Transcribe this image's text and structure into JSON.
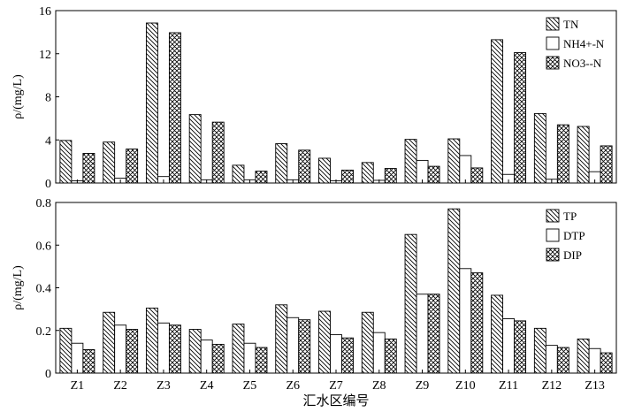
{
  "chart_data": [
    {
      "type": "bar",
      "categories": [
        "Z1",
        "Z2",
        "Z3",
        "Z4",
        "Z5",
        "Z6",
        "Z7",
        "Z8",
        "Z9",
        "Z10",
        "Z11",
        "Z12",
        "Z13"
      ],
      "ylabel": "ρ/(mg/L)",
      "ylim": [
        0,
        16
      ],
      "yticks": [
        0,
        4,
        8,
        12,
        16
      ],
      "legend_position": "top-right",
      "grid": false,
      "series": [
        {
          "name": "TN",
          "pattern": "diagonal-hatch",
          "values": [
            3.95,
            3.8,
            14.85,
            6.35,
            1.65,
            3.65,
            2.3,
            1.9,
            4.05,
            4.1,
            13.3,
            6.45,
            5.25
          ]
        },
        {
          "name": "NH4+-N",
          "pattern": "none",
          "values": [
            0.2,
            0.45,
            0.6,
            0.3,
            0.3,
            0.3,
            0.2,
            0.25,
            2.1,
            2.55,
            0.8,
            0.35,
            1.05
          ]
        },
        {
          "name": "NO3--N",
          "pattern": "cross-hatch",
          "values": [
            2.75,
            3.15,
            13.95,
            5.65,
            1.1,
            3.05,
            1.2,
            1.35,
            1.55,
            1.4,
            12.1,
            5.4,
            3.45
          ]
        }
      ]
    },
    {
      "type": "bar",
      "categories": [
        "Z1",
        "Z2",
        "Z3",
        "Z4",
        "Z5",
        "Z6",
        "Z7",
        "Z8",
        "Z9",
        "Z10",
        "Z11",
        "Z12",
        "Z13"
      ],
      "xlabel": "汇水区编号",
      "ylabel": "ρ/(mg/L)",
      "ylim": [
        0,
        0.8
      ],
      "yticks": [
        0,
        0.2,
        0.4,
        0.6,
        0.8
      ],
      "legend_position": "top-right",
      "grid": false,
      "series": [
        {
          "name": "TP",
          "pattern": "diagonal-hatch",
          "values": [
            0.21,
            0.285,
            0.305,
            0.205,
            0.23,
            0.32,
            0.29,
            0.285,
            0.65,
            0.77,
            0.365,
            0.21,
            0.16
          ]
        },
        {
          "name": "DTP",
          "pattern": "none",
          "values": [
            0.14,
            0.225,
            0.235,
            0.155,
            0.14,
            0.26,
            0.18,
            0.19,
            0.37,
            0.49,
            0.255,
            0.13,
            0.115
          ]
        },
        {
          "name": "DIP",
          "pattern": "cross-hatch",
          "values": [
            0.11,
            0.205,
            0.225,
            0.135,
            0.12,
            0.25,
            0.165,
            0.16,
            0.37,
            0.47,
            0.245,
            0.12,
            0.095
          ]
        }
      ]
    }
  ]
}
